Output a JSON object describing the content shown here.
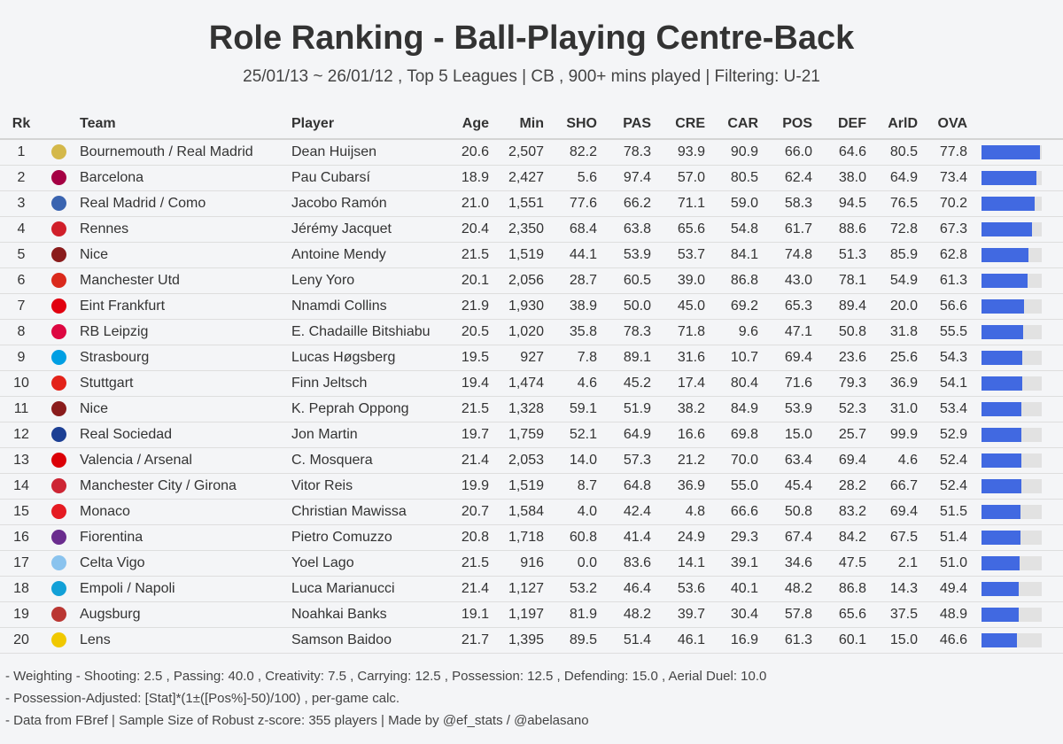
{
  "title": "Role Ranking - Ball-Playing Centre-Back",
  "subtitle": "25/01/13 ~ 26/01/12 , Top 5 Leagues | CB , 900+ mins played | Filtering: U-21",
  "columns": {
    "rk": "Rk",
    "team": "Team",
    "player": "Player",
    "age": "Age",
    "min": "Min",
    "sho": "SHO",
    "pas": "PAS",
    "cre": "CRE",
    "car": "CAR",
    "pos": "POS",
    "def": "DEF",
    "arld": "ArlD",
    "ova": "OVA"
  },
  "chart_data": {
    "type": "table",
    "title": "Role Ranking - Ball-Playing Centre-Back",
    "bar_series": "OVA",
    "bar_scale": [
      0,
      80
    ],
    "rows": [
      {
        "rk": "1",
        "crest": "#d4b84a",
        "team": "Bournemouth / Real Madrid",
        "player": "Dean Huijsen",
        "age": "20.6",
        "min": "2,507",
        "sho": "82.2",
        "pas": "78.3",
        "cre": "93.9",
        "car": "90.9",
        "pos": "66.0",
        "def": "64.6",
        "arld": "80.5",
        "ova": "77.8"
      },
      {
        "rk": "2",
        "crest": "#a50044",
        "team": "Barcelona",
        "player": "Pau Cubarsí",
        "age": "18.9",
        "min": "2,427",
        "sho": "5.6",
        "pas": "97.4",
        "cre": "57.0",
        "car": "80.5",
        "pos": "62.4",
        "def": "38.0",
        "arld": "64.9",
        "ova": "73.4"
      },
      {
        "rk": "3",
        "crest": "#3a64b0",
        "team": "Real Madrid / Como",
        "player": "Jacobo Ramón",
        "age": "21.0",
        "min": "1,551",
        "sho": "77.6",
        "pas": "66.2",
        "cre": "71.1",
        "car": "59.0",
        "pos": "58.3",
        "def": "94.5",
        "arld": "76.5",
        "ova": "70.2"
      },
      {
        "rk": "4",
        "crest": "#d01f2a",
        "team": "Rennes",
        "player": "Jérémy Jacquet",
        "age": "20.4",
        "min": "2,350",
        "sho": "68.4",
        "pas": "63.8",
        "cre": "65.6",
        "car": "54.8",
        "pos": "61.7",
        "def": "88.6",
        "arld": "72.8",
        "ova": "67.3"
      },
      {
        "rk": "5",
        "crest": "#8a1c1c",
        "team": "Nice",
        "player": "Antoine Mendy",
        "age": "21.5",
        "min": "1,519",
        "sho": "44.1",
        "pas": "53.9",
        "cre": "53.7",
        "car": "84.1",
        "pos": "74.8",
        "def": "51.3",
        "arld": "85.9",
        "ova": "62.8"
      },
      {
        "rk": "6",
        "crest": "#da291c",
        "team": "Manchester Utd",
        "player": "Leny Yoro",
        "age": "20.1",
        "min": "2,056",
        "sho": "28.7",
        "pas": "60.5",
        "cre": "39.0",
        "car": "86.8",
        "pos": "43.0",
        "def": "78.1",
        "arld": "54.9",
        "ova": "61.3"
      },
      {
        "rk": "7",
        "crest": "#e1000f",
        "team": "Eint Frankfurt",
        "player": "Nnamdi Collins",
        "age": "21.9",
        "min": "1,930",
        "sho": "38.9",
        "pas": "50.0",
        "cre": "45.0",
        "car": "69.2",
        "pos": "65.3",
        "def": "89.4",
        "arld": "20.0",
        "ova": "56.6"
      },
      {
        "rk": "8",
        "crest": "#dd0741",
        "team": "RB Leipzig",
        "player": "E. Chadaille Bitshiabu",
        "age": "20.5",
        "min": "1,020",
        "sho": "35.8",
        "pas": "78.3",
        "cre": "71.8",
        "car": "9.6",
        "pos": "47.1",
        "def": "50.8",
        "arld": "31.8",
        "ova": "55.5"
      },
      {
        "rk": "9",
        "crest": "#009fe3",
        "team": "Strasbourg",
        "player": "Lucas Høgsberg",
        "age": "19.5",
        "min": "927",
        "sho": "7.8",
        "pas": "89.1",
        "cre": "31.6",
        "car": "10.7",
        "pos": "69.4",
        "def": "23.6",
        "arld": "25.6",
        "ova": "54.3"
      },
      {
        "rk": "10",
        "crest": "#e32219",
        "team": "Stuttgart",
        "player": "Finn Jeltsch",
        "age": "19.4",
        "min": "1,474",
        "sho": "4.6",
        "pas": "45.2",
        "cre": "17.4",
        "car": "80.4",
        "pos": "71.6",
        "def": "79.3",
        "arld": "36.9",
        "ova": "54.1"
      },
      {
        "rk": "11",
        "crest": "#8a1c1c",
        "team": "Nice",
        "player": "K. Peprah Oppong",
        "age": "21.5",
        "min": "1,328",
        "sho": "59.1",
        "pas": "51.9",
        "cre": "38.2",
        "car": "84.9",
        "pos": "53.9",
        "def": "52.3",
        "arld": "31.0",
        "ova": "53.4"
      },
      {
        "rk": "12",
        "crest": "#1c3f94",
        "team": "Real Sociedad",
        "player": "Jon Martin",
        "age": "19.7",
        "min": "1,759",
        "sho": "52.1",
        "pas": "64.9",
        "cre": "16.6",
        "car": "69.8",
        "pos": "15.0",
        "def": "25.7",
        "arld": "99.9",
        "ova": "52.9"
      },
      {
        "rk": "13",
        "crest": "#db0007",
        "team": "Valencia / Arsenal",
        "player": "C. Mosquera",
        "age": "21.4",
        "min": "2,053",
        "sho": "14.0",
        "pas": "57.3",
        "cre": "21.2",
        "car": "70.0",
        "pos": "63.4",
        "def": "69.4",
        "arld": "4.6",
        "ova": "52.4"
      },
      {
        "rk": "14",
        "crest": "#cd2534",
        "team": "Manchester City / Girona",
        "player": "Vitor Reis",
        "age": "19.9",
        "min": "1,519",
        "sho": "8.7",
        "pas": "64.8",
        "cre": "36.9",
        "car": "55.0",
        "pos": "45.4",
        "def": "28.2",
        "arld": "66.7",
        "ova": "52.4"
      },
      {
        "rk": "15",
        "crest": "#e51b22",
        "team": "Monaco",
        "player": "Christian Mawissa",
        "age": "20.7",
        "min": "1,584",
        "sho": "4.0",
        "pas": "42.4",
        "cre": "4.8",
        "car": "66.6",
        "pos": "50.8",
        "def": "83.2",
        "arld": "69.4",
        "ova": "51.5"
      },
      {
        "rk": "16",
        "crest": "#6a2c8e",
        "team": "Fiorentina",
        "player": "Pietro Comuzzo",
        "age": "20.8",
        "min": "1,718",
        "sho": "60.8",
        "pas": "41.4",
        "cre": "24.9",
        "car": "29.3",
        "pos": "67.4",
        "def": "84.2",
        "arld": "67.5",
        "ova": "51.4"
      },
      {
        "rk": "17",
        "crest": "#8ac3ee",
        "team": "Celta Vigo",
        "player": "Yoel Lago",
        "age": "21.5",
        "min": "916",
        "sho": "0.0",
        "pas": "83.6",
        "cre": "14.1",
        "car": "39.1",
        "pos": "34.6",
        "def": "47.5",
        "arld": "2.1",
        "ova": "51.0"
      },
      {
        "rk": "18",
        "crest": "#12a0d7",
        "team": "Empoli / Napoli",
        "player": "Luca Marianucci",
        "age": "21.4",
        "min": "1,127",
        "sho": "53.2",
        "pas": "46.4",
        "cre": "53.6",
        "car": "40.1",
        "pos": "48.2",
        "def": "86.8",
        "arld": "14.3",
        "ova": "49.4"
      },
      {
        "rk": "19",
        "crest": "#ba3733",
        "team": "Augsburg",
        "player": "Noahkai Banks",
        "age": "19.1",
        "min": "1,197",
        "sho": "81.9",
        "pas": "48.2",
        "cre": "39.7",
        "car": "30.4",
        "pos": "57.8",
        "def": "65.6",
        "arld": "37.5",
        "ova": "48.9"
      },
      {
        "rk": "20",
        "crest": "#f0c800",
        "team": "Lens",
        "player": "Samson Baidoo",
        "age": "21.7",
        "min": "1,395",
        "sho": "89.5",
        "pas": "51.4",
        "cre": "46.1",
        "car": "16.9",
        "pos": "61.3",
        "def": "60.1",
        "arld": "15.0",
        "ova": "46.6"
      }
    ]
  },
  "footer": {
    "line1": "- Weighting - Shooting: 2.5 , Passing: 40.0 , Creativity: 7.5 , Carrying: 12.5 , Possession: 12.5 , Defending: 15.0 , Aerial Duel: 10.0",
    "line2": "- Possession-Adjusted: [Stat]*(1±([Pos%]-50)/100) , per-game calc.",
    "line3": "- Data from FBref | Sample Size of Robust z-score: 355 players | Made by @ef_stats / @abelasano"
  }
}
